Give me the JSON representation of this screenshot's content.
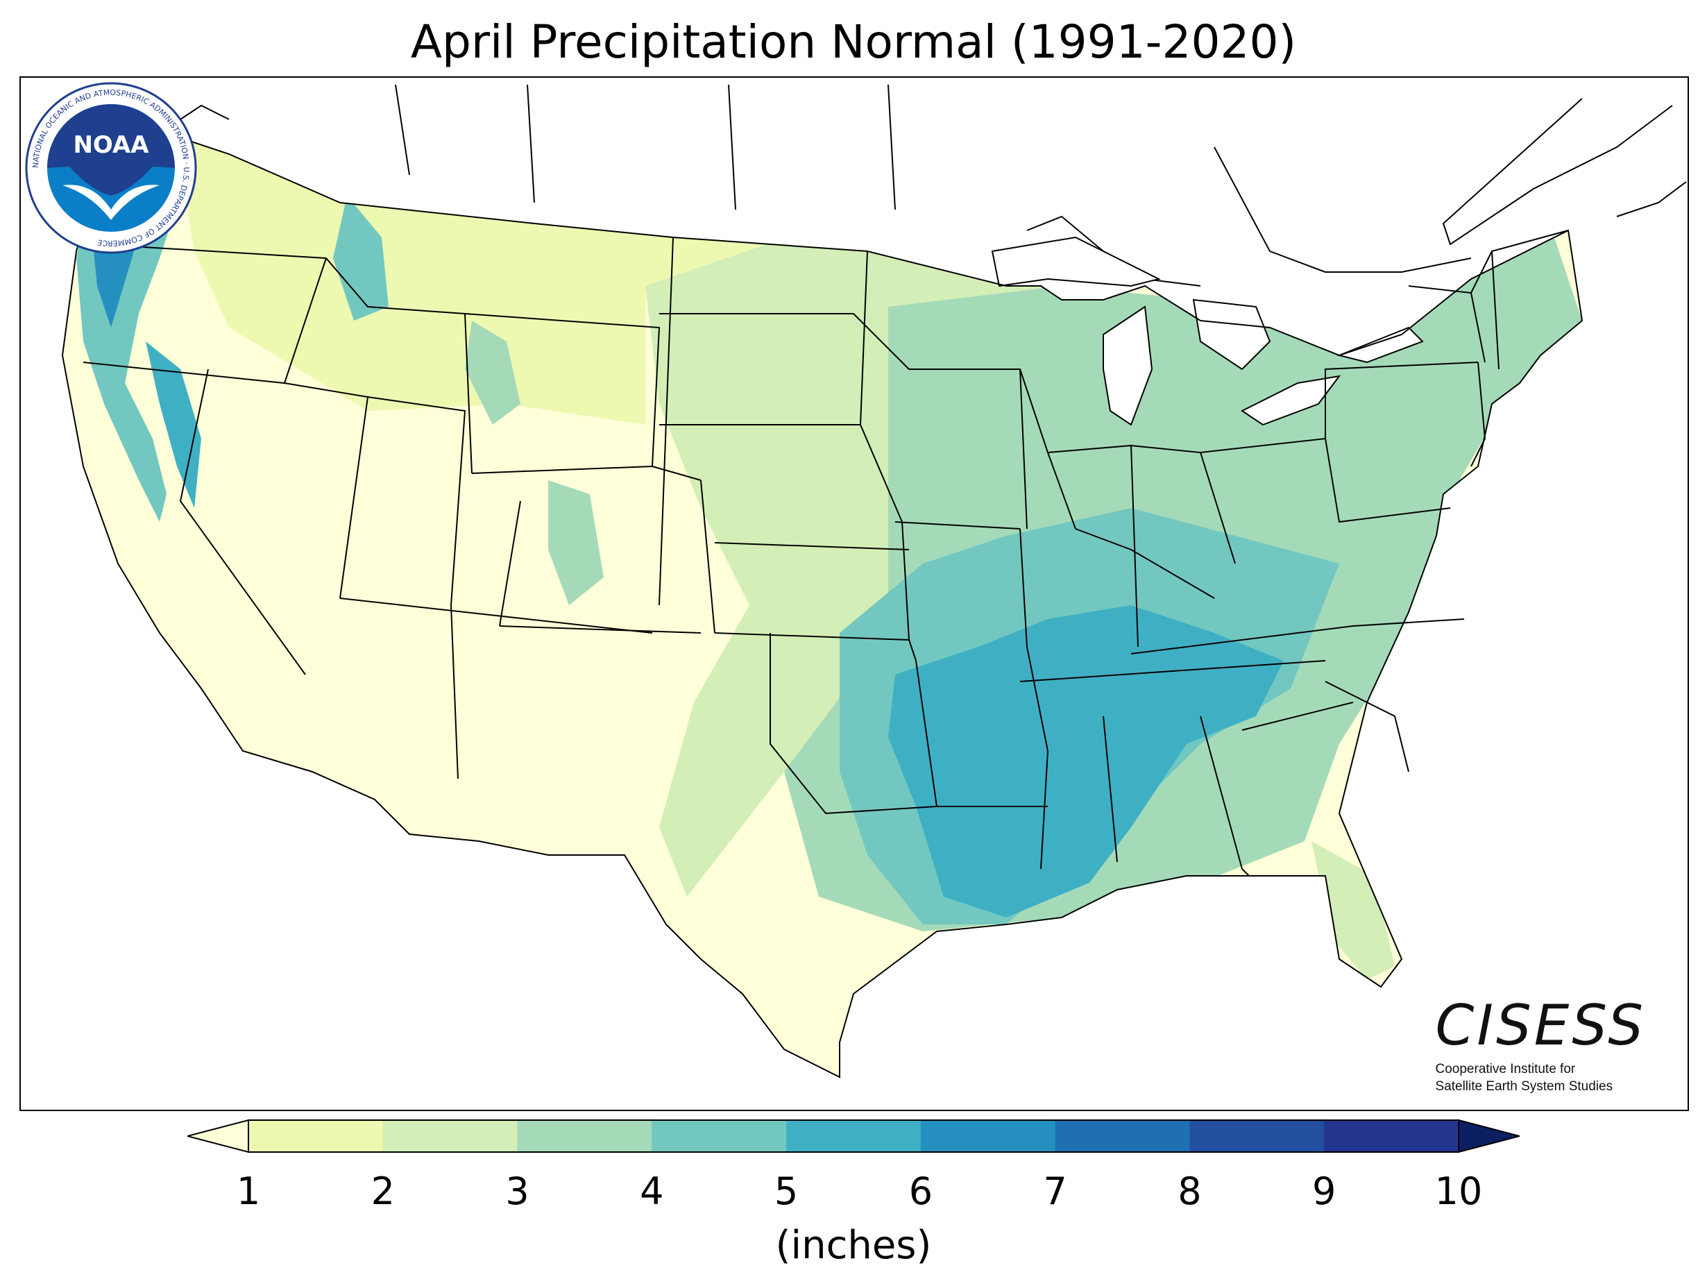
{
  "title": "April Precipitation Normal (1991-2020)",
  "colorbar": {
    "unit_label": "(inches)",
    "ticks": [
      "1",
      "2",
      "3",
      "4",
      "5",
      "6",
      "7",
      "8",
      "9",
      "10"
    ],
    "tick_values": [
      1,
      2,
      3,
      4,
      5,
      6,
      7,
      8,
      9,
      10
    ],
    "colors": [
      "#edf8b1",
      "#d3eeb6",
      "#a5dab9",
      "#72c8c0",
      "#3fb0c4",
      "#2590c0",
      "#1f6fb3",
      "#234fa0",
      "#243590"
    ],
    "under_color": "#ffffd9",
    "over_color": "#0c1f63",
    "extend": "both"
  },
  "map_fill_colors": {
    "dry": "#ffffd9",
    "c1": "#edf8b1",
    "c2": "#d3eeb6",
    "c3": "#a5dab9",
    "c4": "#72c8c0",
    "c5": "#3fb0c4",
    "c6": "#2590c0",
    "c7": "#1f6fb3",
    "c9": "#0c1f63"
  },
  "logos": {
    "cisess_word": "CISESS",
    "cisess_line1": "Cooperative Institute for",
    "cisess_line2": "Satellite Earth System Studies",
    "noaa_word": "NOAA",
    "noaa_ring_text": "NATIONAL OCEANIC AND ATMOSPHERIC ADMINISTRATION · U.S. DEPARTMENT OF COMMERCE"
  }
}
